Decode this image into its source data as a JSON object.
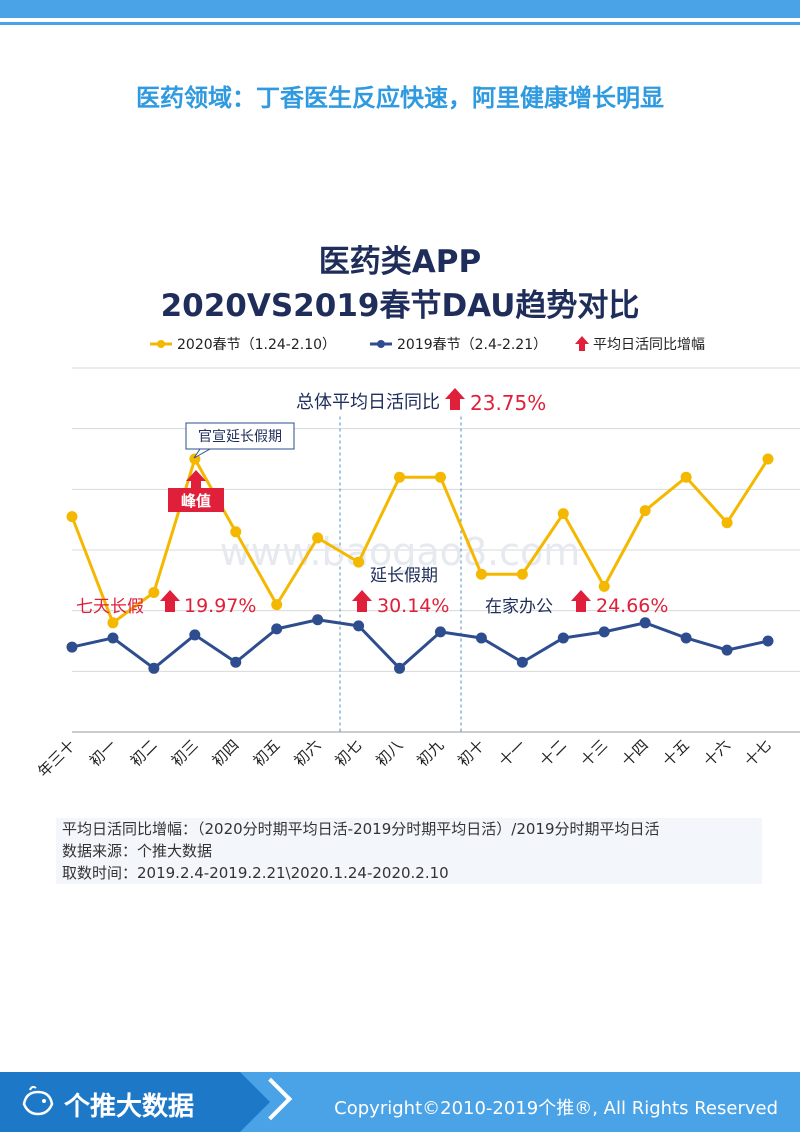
{
  "header": {
    "section_title": "医药领域：丁香医生反应快速，阿里健康增长明显"
  },
  "watermark": "www.baogao8.com",
  "chart_data": {
    "type": "line",
    "title_line1": "医药类APP",
    "title_line2": "2020VS2019春节DAU趋势对比",
    "categories": [
      "年三十",
      "初一",
      "初二",
      "初三",
      "初四",
      "初五",
      "初六",
      "初七",
      "初八",
      "初九",
      "初十",
      "十一",
      "十二",
      "十三",
      "十四",
      "十五",
      "十六",
      "十七"
    ],
    "series": [
      {
        "name": "2020春节（1.24-2.10）",
        "color": "#f5b800",
        "values": [
          3.55,
          1.8,
          2.3,
          4.5,
          3.3,
          2.1,
          3.2,
          2.8,
          4.2,
          4.2,
          2.6,
          2.6,
          3.6,
          2.4,
          3.65,
          4.2,
          3.45,
          4.5
        ]
      },
      {
        "name": "2019春节（2.4-2.21）",
        "color": "#2e4d8f",
        "values": [
          1.4,
          1.55,
          1.05,
          1.6,
          1.15,
          1.7,
          1.85,
          1.75,
          1.05,
          1.65,
          1.55,
          1.15,
          1.55,
          1.65,
          1.8,
          1.55,
          1.35,
          1.5
        ]
      }
    ],
    "legend_third": "平均日活同比增幅",
    "ylim": [
      0,
      6
    ],
    "grid": true,
    "legend": "top",
    "annotations": {
      "overall_label": "总体平均日活同比",
      "overall_value": "23.75%",
      "callout": "官宣延长假期",
      "peak": "峰值",
      "p1_label": "七天长假",
      "p1_value": "19.97%",
      "p2_label": "延长假期",
      "p2_value": "30.14%",
      "p3_label": "在家办公",
      "p3_value": "24.66%"
    }
  },
  "notes": {
    "line1": "平均日活同比增幅：（2020分时期平均日活-2019分时期平均日活）/2019分时期平均日活",
    "line2": "数据来源：个推大数据",
    "line3": "取数时间：2019.2.4-2019.2.21\\2020.1.24-2020.2.10"
  },
  "footer": {
    "brand": "个推大数据",
    "copyright": "Copyright©2010-2019个推®, All Rights Reserved"
  },
  "colors": {
    "accent_blue": "#4aa3e6",
    "dark_blue": "#1e78c8",
    "red": "#e0203a",
    "yellow": "#f5b800",
    "navy": "#2e4d8f"
  }
}
